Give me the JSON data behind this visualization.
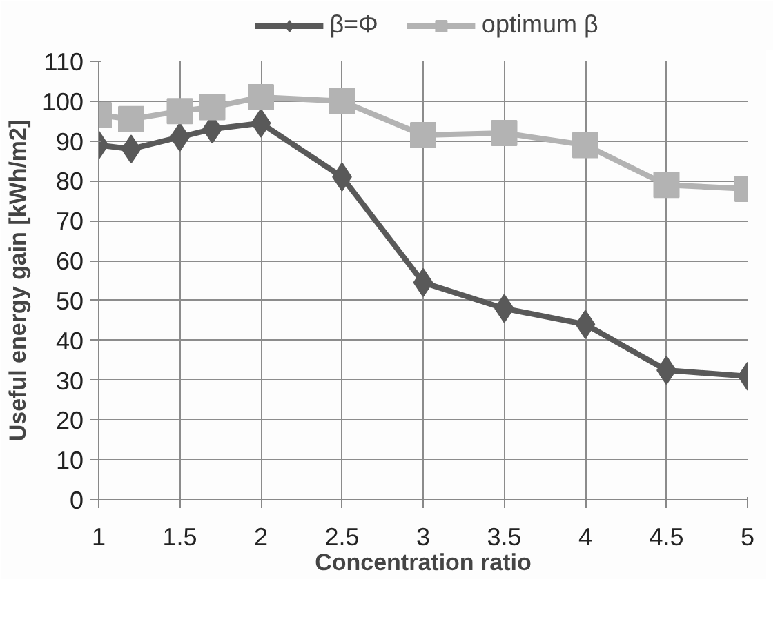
{
  "chart_data": {
    "type": "line",
    "xlabel": "Concentration ratio",
    "ylabel": "Useful energy gain [kWh/m2]",
    "x": [
      1,
      1.2,
      1.5,
      1.7,
      2,
      2.5,
      3,
      3.5,
      4,
      4.5,
      5
    ],
    "series": [
      {
        "name": "β=Φ",
        "color": "#595959",
        "marker": "diamond",
        "values": [
          89,
          88,
          91,
          93,
          94.5,
          81,
          54.5,
          48,
          44,
          32.5,
          31
        ]
      },
      {
        "name": "optimum β",
        "color": "#b3b3b3",
        "marker": "square",
        "values": [
          96.5,
          95.5,
          97.5,
          98.5,
          101,
          100,
          91.5,
          92,
          89,
          79,
          78
        ]
      }
    ],
    "xlim": [
      1,
      5
    ],
    "xticks": [
      1,
      1.5,
      2,
      2.5,
      3,
      3.5,
      4,
      4.5,
      5
    ],
    "ylim": [
      0,
      110
    ],
    "yticks": [
      0,
      10,
      20,
      30,
      40,
      50,
      60,
      70,
      80,
      90,
      100,
      110
    ],
    "grid": true,
    "legend": "top",
    "line_style": "solid"
  }
}
